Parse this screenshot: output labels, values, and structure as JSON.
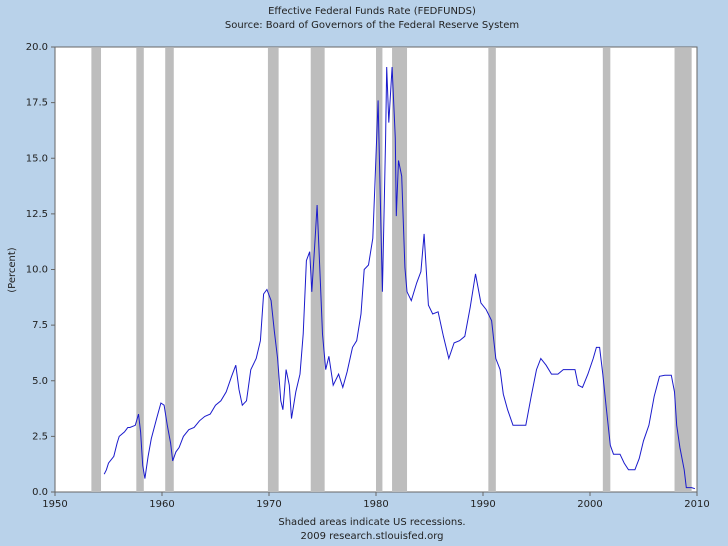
{
  "chart_data": {
    "type": "line",
    "title": "Effective Federal Funds Rate (FEDFUNDS)",
    "subtitle": "Source: Board of Governors of the Federal Reserve System",
    "ylabel": "(Percent)",
    "note": "Shaded areas indicate US recessions.",
    "credit": "2009 research.stlouisfed.org",
    "color": "#1a1acc",
    "recession_color": "#bdbdbd",
    "recessions": [
      [
        1953.4,
        1954.3
      ],
      [
        1957.6,
        1958.3
      ],
      [
        1960.3,
        1961.1
      ],
      [
        1969.9,
        1970.9
      ],
      [
        1973.9,
        1975.2
      ],
      [
        1980.0,
        1980.6
      ],
      [
        1981.5,
        1982.9
      ],
      [
        1990.5,
        1991.2
      ],
      [
        2001.2,
        2001.9
      ],
      [
        2007.9,
        2009.5
      ]
    ],
    "x": [
      1954.6,
      1954.8,
      1955.0,
      1955.5,
      1955.8,
      1956.0,
      1956.5,
      1956.8,
      1957.0,
      1957.5,
      1957.8,
      1958.0,
      1958.2,
      1958.4,
      1958.7,
      1959.0,
      1959.5,
      1959.9,
      1960.2,
      1960.5,
      1960.8,
      1961.0,
      1961.3,
      1961.6,
      1962.0,
      1962.5,
      1963.0,
      1963.5,
      1964.0,
      1964.5,
      1965.0,
      1965.5,
      1966.0,
      1966.5,
      1966.9,
      1967.2,
      1967.5,
      1967.9,
      1968.3,
      1968.8,
      1969.2,
      1969.5,
      1969.8,
      1970.2,
      1970.5,
      1970.8,
      1971.1,
      1971.3,
      1971.6,
      1971.9,
      1972.1,
      1972.5,
      1972.9,
      1973.2,
      1973.5,
      1973.8,
      1974.0,
      1974.3,
      1974.5,
      1974.8,
      1975.0,
      1975.3,
      1975.6,
      1976.0,
      1976.5,
      1976.9,
      1977.3,
      1977.8,
      1978.2,
      1978.6,
      1978.9,
      1979.3,
      1979.7,
      1979.9,
      1980.2,
      1980.4,
      1980.6,
      1980.9,
      1981.0,
      1981.2,
      1981.5,
      1981.8,
      1981.9,
      1982.1,
      1982.4,
      1982.7,
      1982.9,
      1983.3,
      1983.8,
      1984.2,
      1984.5,
      1984.9,
      1985.3,
      1985.8,
      1986.3,
      1986.8,
      1987.3,
      1987.8,
      1988.3,
      1988.8,
      1989.3,
      1989.8,
      1990.3,
      1990.8,
      1991.2,
      1991.6,
      1991.9,
      1992.3,
      1992.8,
      1993.5,
      1994.0,
      1994.5,
      1995.0,
      1995.4,
      1995.9,
      1996.4,
      1997.0,
      1997.5,
      1998.0,
      1998.6,
      1998.9,
      1999.3,
      1999.8,
      2000.3,
      2000.6,
      2000.9,
      2001.2,
      2001.5,
      2001.9,
      2002.2,
      2002.8,
      2003.2,
      2003.6,
      2004.2,
      2004.6,
      2005.0,
      2005.5,
      2006.0,
      2006.5,
      2007.0,
      2007.6,
      2007.9,
      2008.1,
      2008.4,
      2008.8,
      2009.0,
      2009.5,
      2009.8
    ],
    "values": [
      0.8,
      1.0,
      1.3,
      1.6,
      2.2,
      2.5,
      2.7,
      2.9,
      2.9,
      3.0,
      3.5,
      2.7,
      1.2,
      0.6,
      1.6,
      2.4,
      3.3,
      4.0,
      3.9,
      3.0,
      2.2,
      1.4,
      1.8,
      2.0,
      2.5,
      2.8,
      2.9,
      3.2,
      3.4,
      3.5,
      3.9,
      4.1,
      4.5,
      5.2,
      5.7,
      4.6,
      3.9,
      4.1,
      5.5,
      6.0,
      6.8,
      8.9,
      9.1,
      8.6,
      7.2,
      6.0,
      4.1,
      3.7,
      5.5,
      4.8,
      3.3,
      4.5,
      5.3,
      7.1,
      10.4,
      10.8,
      9.0,
      11.3,
      12.9,
      9.4,
      7.1,
      5.5,
      6.1,
      4.8,
      5.3,
      4.7,
      5.4,
      6.5,
      6.8,
      8.0,
      10.0,
      10.2,
      11.4,
      13.8,
      17.6,
      13.2,
      9.0,
      15.9,
      19.1,
      16.6,
      19.1,
      15.9,
      12.4,
      14.9,
      14.2,
      10.1,
      9.0,
      8.6,
      9.4,
      9.9,
      11.6,
      8.4,
      8.0,
      8.1,
      7.0,
      6.0,
      6.7,
      6.8,
      7.0,
      8.3,
      9.8,
      8.5,
      8.2,
      7.7,
      6.0,
      5.5,
      4.4,
      3.7,
      3.0,
      3.0,
      3.0,
      4.3,
      5.5,
      6.0,
      5.7,
      5.3,
      5.3,
      5.5,
      5.5,
      5.5,
      4.8,
      4.7,
      5.3,
      6.0,
      6.5,
      6.5,
      5.3,
      3.9,
      2.1,
      1.7,
      1.7,
      1.3,
      1.0,
      1.0,
      1.5,
      2.3,
      3.0,
      4.3,
      5.2,
      5.25,
      5.25,
      4.5,
      3.0,
      2.0,
      1.0,
      0.2,
      0.2,
      0.15
    ],
    "xlim": [
      1950,
      2010
    ],
    "xticks": [
      1950,
      1960,
      1970,
      1980,
      1990,
      2000,
      2010
    ],
    "ylim": [
      0,
      20
    ],
    "yticks": [
      {
        "value": 0,
        "label": "0.0"
      },
      {
        "value": 2.5,
        "label": "2.5"
      },
      {
        "value": 5,
        "label": "5.0"
      },
      {
        "value": 7.5,
        "label": "7.5"
      },
      {
        "value": 10,
        "label": "10.0"
      },
      {
        "value": 12.5,
        "label": "12.5"
      },
      {
        "value": 15,
        "label": "15.0"
      },
      {
        "value": 17.5,
        "label": "17.5"
      },
      {
        "value": 20,
        "label": "20.0"
      }
    ]
  }
}
